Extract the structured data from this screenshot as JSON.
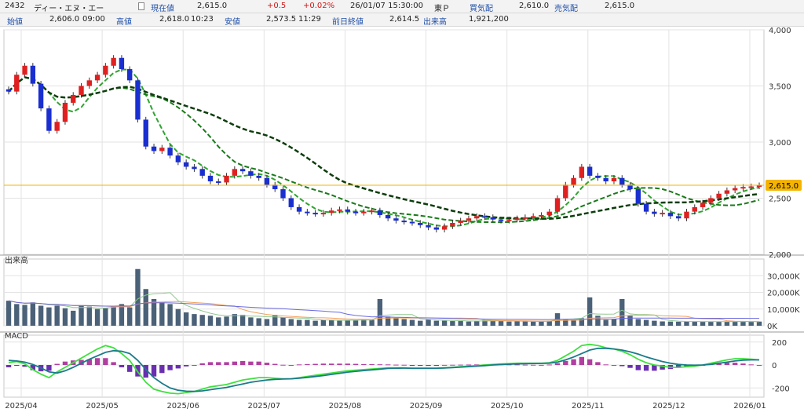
{
  "quote": {
    "code": "2432",
    "name": "ディー・エヌ・エー",
    "current_label": "現在値",
    "current_value": "2,615.0",
    "change": "+0.5",
    "change_pct": "+0.02%",
    "datetime": "26/01/07 15:30:00",
    "market": "東Ｐ",
    "bid_label": "買気配",
    "bid_value": "2,610.0",
    "ask_label": "売気配",
    "ask_value": "2,615.0",
    "open_label": "始値",
    "open_value": "2,606.0",
    "open_time": "09:00",
    "high_label": "高値",
    "high_value": "2,618.0",
    "high_time": "10:23",
    "low_label": "安値",
    "low_value": "2,573.5",
    "low_time": "11:29",
    "prev_close_label": "前日終値",
    "prev_close_value": "2,614.5",
    "volume_label": "出来高",
    "volume_value": "1,921,200"
  },
  "chart_data": [
    {
      "type": "candlestick",
      "panel": "price",
      "y_ticks": [
        "4,000",
        "3,500",
        "3,000",
        "2,500",
        "2,000"
      ],
      "ylim": [
        2000,
        4000
      ],
      "current_price_label": "2,615.0",
      "current_price": 2615,
      "x_labels": [
        "2025/04",
        "2025/05",
        "2025/06",
        "2025/07",
        "2025/08",
        "2025/09",
        "2025/10",
        "2025/11",
        "2025/12",
        "2026/01"
      ],
      "close_series": [
        3450,
        3600,
        3680,
        3520,
        3300,
        3100,
        3180,
        3350,
        3420,
        3500,
        3550,
        3600,
        3680,
        3750,
        3650,
        3550,
        3200,
        2960,
        2920,
        2950,
        2880,
        2820,
        2780,
        2760,
        2700,
        2650,
        2640,
        2700,
        2760,
        2740,
        2700,
        2680,
        2620,
        2580,
        2500,
        2420,
        2380,
        2370,
        2360,
        2370,
        2390,
        2400,
        2380,
        2370,
        2380,
        2390,
        2350,
        2320,
        2300,
        2290,
        2280,
        2260,
        2240,
        2220,
        2250,
        2280,
        2300,
        2320,
        2340,
        2330,
        2310,
        2300,
        2310,
        2320,
        2330,
        2340,
        2350,
        2380,
        2500,
        2620,
        2680,
        2780,
        2700,
        2680,
        2650,
        2680,
        2620,
        2580,
        2450,
        2380,
        2360,
        2370,
        2340,
        2320,
        2380,
        2420,
        2460,
        2500,
        2540,
        2570,
        2590,
        2600,
        2605,
        2615
      ],
      "ma_short_color": "#2fa42f",
      "ma_mid_color": "#1a7a1a",
      "ma_long_color": "#0d3d0d",
      "up_color": "#e02020",
      "down_color": "#1a2fd0",
      "current_price_color": "#f4b400"
    },
    {
      "type": "bar",
      "panel": "volume",
      "title": "出来高",
      "y_ticks": [
        "30,000K",
        "20,000K",
        "10,000K",
        "0K"
      ],
      "ylim": [
        0,
        40000
      ],
      "values": [
        15000,
        13000,
        12500,
        14000,
        12000,
        11000,
        12000,
        10500,
        9000,
        12000,
        11500,
        10000,
        10500,
        12000,
        13000,
        11000,
        34000,
        22000,
        16000,
        14000,
        13000,
        10000,
        8000,
        7000,
        6500,
        6000,
        5000,
        5500,
        7000,
        6500,
        5000,
        4500,
        4000,
        6500,
        5000,
        4000,
        3500,
        3500,
        3000,
        3500,
        3500,
        3000,
        3500,
        3200,
        3800,
        3500,
        16000,
        5500,
        4500,
        4000,
        3500,
        3000,
        4000,
        3000,
        3000,
        2800,
        2800,
        2500,
        3000,
        3200,
        3000,
        2800,
        2500,
        2600,
        2800,
        2500,
        2600,
        3000,
        7500,
        4000,
        3500,
        4500,
        17000,
        6000,
        3500,
        4000,
        16000,
        6000,
        4000,
        3500,
        3000,
        2600,
        2500,
        2400,
        2500,
        2600,
        2500,
        2500,
        2400,
        2500,
        2600,
        2500,
        2400,
        2500
      ],
      "bar_color": "#4a6178"
    },
    {
      "type": "line",
      "panel": "macd",
      "title": "MACD",
      "y_ticks": [
        "200",
        "0",
        "-200"
      ],
      "ylim": [
        -280,
        260
      ],
      "series": [
        {
          "values": [
            20,
            30,
            10,
            -40,
            -80,
            -110,
            -60,
            -20,
            20,
            60,
            100,
            140,
            170,
            150,
            100,
            40,
            -60,
            -150,
            -210,
            -230,
            -245,
            -250,
            -240,
            -230,
            -210,
            -190,
            -180,
            -170,
            -150,
            -130,
            -120,
            -110,
            -110,
            -115,
            -120,
            -120,
            -110,
            -100,
            -90,
            -80,
            -70,
            -60,
            -50,
            -45,
            -40,
            -35,
            -30,
            -25,
            -25,
            -25,
            -30,
            -30,
            -30,
            -30,
            -25,
            -20,
            -15,
            -10,
            -5,
            0,
            5,
            10,
            12,
            15,
            15,
            15,
            15,
            20,
            40,
            80,
            120,
            170,
            180,
            170,
            150,
            140,
            120,
            90,
            50,
            20,
            0,
            -10,
            -20,
            -20,
            -15,
            -10,
            0,
            15,
            30,
            45,
            55,
            55,
            50,
            45
          ]
        },
        {
          "values": [
            40,
            35,
            25,
            5,
            -25,
            -60,
            -70,
            -50,
            -20,
            15,
            50,
            80,
            110,
            125,
            120,
            100,
            40,
            -40,
            -110,
            -160,
            -200,
            -220,
            -228,
            -230,
            -225,
            -215,
            -205,
            -195,
            -180,
            -165,
            -150,
            -140,
            -130,
            -125,
            -122,
            -120,
            -115,
            -108,
            -100,
            -92,
            -82,
            -72,
            -62,
            -55,
            -48,
            -42,
            -36,
            -30,
            -28,
            -27,
            -28,
            -28,
            -28,
            -28,
            -26,
            -22,
            -18,
            -14,
            -10,
            -5,
            0,
            4,
            7,
            10,
            12,
            13,
            14,
            16,
            25,
            45,
            70,
            100,
            130,
            145,
            145,
            140,
            130,
            115,
            95,
            70,
            50,
            30,
            15,
            5,
            0,
            -2,
            0,
            6,
            15,
            25,
            35,
            42,
            45,
            45
          ]
        }
      ],
      "histogram_up_color": "#b03fa0",
      "histogram_down_color": "#6a2fb0"
    }
  ]
}
